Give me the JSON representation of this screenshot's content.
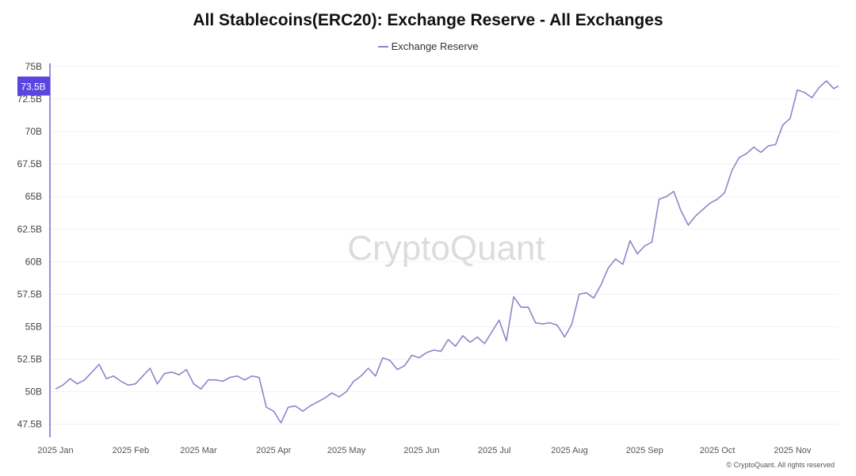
{
  "colors": {
    "series": "#8e84cc",
    "axis": "#7063d6",
    "current_badge": "#5b45e0",
    "grid": "#f1f1f1",
    "watermark": "#dcdcdc"
  },
  "watermark": "CryptoQuant",
  "copyright": "© CryptoQuant. All rights reserved",
  "chart_data": {
    "type": "line",
    "title": "All Stablecoins(ERC20): Exchange Reserve - All Exchanges",
    "legend": [
      "Exchange Reserve"
    ],
    "legend_position": "top-center",
    "xlabel": "",
    "ylabel": "",
    "grid": true,
    "ylim": [
      46.5,
      75
    ],
    "y_ticks": [
      47.5,
      50,
      52.5,
      55,
      57.5,
      60,
      62.5,
      65,
      67.5,
      70,
      72.5,
      75
    ],
    "y_tick_labels": [
      "47.5B",
      "50B",
      "52.5B",
      "55B",
      "57.5B",
      "60B",
      "62.5B",
      "65B",
      "67.5B",
      "70B",
      "72.5B",
      "75B"
    ],
    "current_value_label": "73.5B",
    "current_value": 73.5,
    "x_range_days": [
      0,
      323
    ],
    "x_ticks": [
      0,
      31,
      59,
      90,
      120,
      151,
      181,
      212,
      243,
      273,
      304
    ],
    "x_tick_labels": [
      "2025 Jan",
      "2025 Feb",
      "2025 Mar",
      "2025 Apr",
      "2025 May",
      "2025 Jun",
      "2025 Jul",
      "2025 Aug",
      "2025 Sep",
      "2025 Oct",
      "2025 Nov"
    ],
    "series": [
      {
        "name": "Exchange Reserve",
        "unit": "B USD",
        "x_days": [
          0,
          3,
          6,
          9,
          12,
          15,
          18,
          21,
          24,
          27,
          30,
          33,
          36,
          39,
          42,
          45,
          48,
          51,
          54,
          57,
          60,
          63,
          66,
          69,
          72,
          75,
          78,
          81,
          84,
          87,
          90,
          93,
          96,
          99,
          102,
          105,
          108,
          111,
          114,
          117,
          120,
          123,
          126,
          129,
          132,
          135,
          138,
          141,
          144,
          147,
          150,
          153,
          156,
          159,
          162,
          165,
          168,
          171,
          174,
          177,
          180,
          183,
          186,
          189,
          192,
          195,
          198,
          201,
          204,
          207,
          210,
          213,
          216,
          219,
          222,
          225,
          228,
          231,
          234,
          237,
          240,
          243,
          246,
          249,
          252,
          255,
          258,
          261,
          264,
          267,
          270,
          273,
          276,
          279,
          282,
          285,
          288,
          291,
          294,
          297,
          300,
          303,
          306,
          309,
          312,
          315,
          318,
          321,
          323
        ],
        "values": [
          50.2,
          50.5,
          51.0,
          50.6,
          50.9,
          51.5,
          52.1,
          51.0,
          51.2,
          50.8,
          50.5,
          50.6,
          51.2,
          51.8,
          50.6,
          51.4,
          51.5,
          51.3,
          51.7,
          50.6,
          50.2,
          50.9,
          50.9,
          50.8,
          51.1,
          51.2,
          50.9,
          51.2,
          51.1,
          48.8,
          48.5,
          47.6,
          48.8,
          48.9,
          48.5,
          48.9,
          49.2,
          49.5,
          49.9,
          49.6,
          50.0,
          50.8,
          51.2,
          51.8,
          51.2,
          52.6,
          52.4,
          51.7,
          52.0,
          52.8,
          52.6,
          53.0,
          53.2,
          53.1,
          54.0,
          53.5,
          54.3,
          53.8,
          54.2,
          53.7,
          54.6,
          55.5,
          53.9,
          57.3,
          56.5,
          56.5,
          55.3,
          55.2,
          55.3,
          55.1,
          54.2,
          55.2,
          57.5,
          57.6,
          57.2,
          58.2,
          59.5,
          60.2,
          59.8,
          61.6,
          60.6,
          61.2,
          61.5,
          64.8,
          65.0,
          65.4,
          63.9,
          62.8,
          63.5,
          64.0,
          64.5,
          64.8,
          65.3,
          67.0,
          68.0,
          68.3,
          68.8,
          68.4,
          68.9,
          69.0,
          70.5,
          71.0,
          73.2,
          73.0,
          72.6,
          73.4,
          73.9,
          73.3,
          73.5
        ]
      }
    ]
  }
}
